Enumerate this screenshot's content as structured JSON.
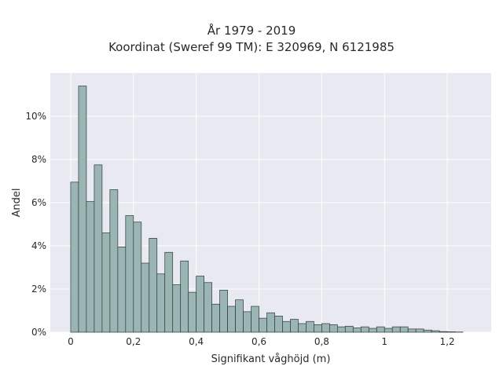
{
  "chart_data": {
    "type": "bar",
    "title": "År 1979 - 2019",
    "subtitle": "Koordinat (Sweref 99 TM): E 320969, N 6121985",
    "xlabel": "Signifikant våghöjd (m)",
    "ylabel": "Andel",
    "xlim": [
      -0.065,
      1.34
    ],
    "ylim": [
      0,
      12
    ],
    "xticks": [
      0,
      0.2,
      0.4,
      0.6,
      0.8,
      1.0,
      1.2
    ],
    "xtick_labels": [
      "0",
      "0,2",
      "0,4",
      "0,6",
      "0,8",
      "1",
      "1,2"
    ],
    "yticks": [
      0,
      2,
      4,
      6,
      8,
      10
    ],
    "ytick_labels": [
      "0%",
      "2%",
      "4%",
      "6%",
      "8%",
      "10%"
    ],
    "bin_width": 0.025,
    "bin_start": 0.0,
    "values": [
      6.95,
      11.4,
      6.05,
      7.75,
      4.6,
      6.6,
      3.95,
      5.4,
      5.1,
      3.2,
      4.35,
      2.7,
      3.7,
      2.2,
      3.3,
      1.85,
      2.6,
      2.3,
      1.3,
      1.95,
      1.2,
      1.5,
      0.95,
      1.2,
      0.65,
      0.9,
      0.75,
      0.5,
      0.6,
      0.4,
      0.5,
      0.35,
      0.4,
      0.35,
      0.25,
      0.28,
      0.2,
      0.25,
      0.18,
      0.25,
      0.18,
      0.25,
      0.25,
      0.15,
      0.15,
      0.1,
      0.07,
      0.03,
      0.02,
      0.01
    ],
    "grid": true,
    "legend": "none",
    "colors": {
      "bar_fill": "#9ab5b3",
      "bar_edge": "#2e3b3a",
      "plot_background": "#e9e9f1",
      "grid": "#ffffff"
    }
  }
}
